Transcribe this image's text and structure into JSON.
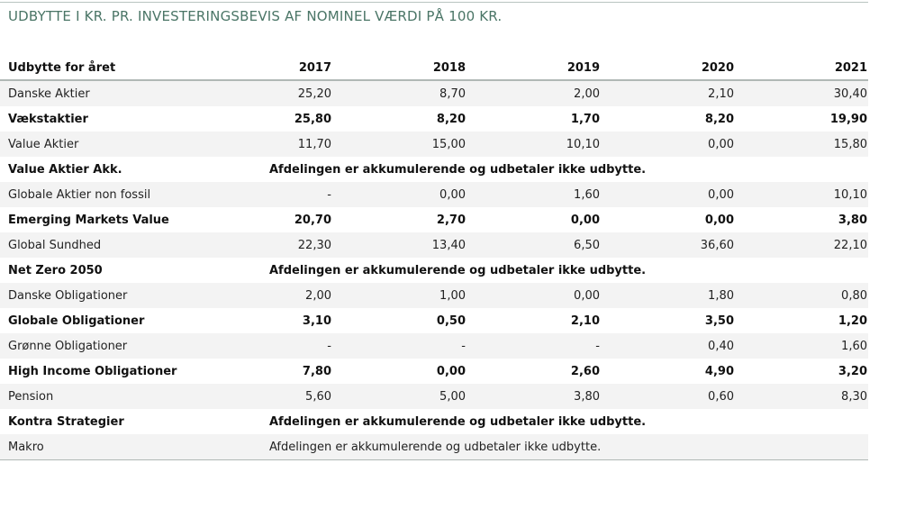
{
  "title": "UDBYTTE I KR. PR. INVESTERINGSBEVIS AF NOMINEL VÆRDI PÅ 100 KR.",
  "table": {
    "header": [
      "Udbytte for året",
      "2017",
      "2018",
      "2019",
      "2020",
      "2021"
    ],
    "rows": [
      [
        "Danske Aktier",
        "25,20",
        "8,70",
        "2,00",
        "2,10",
        "30,40"
      ],
      [
        "Vækstaktier",
        "25,80",
        "8,20",
        "1,70",
        "8,20",
        "19,90"
      ],
      [
        "Value Aktier",
        "11,70",
        "15,00",
        "10,10",
        "0,00",
        "15,80"
      ],
      [
        "Value Aktier Akk.",
        "Afdelingen er akkumulerende og udbetaler ikke udbytte."
      ],
      [
        "Globale Aktier non fossil",
        "-",
        "0,00",
        "1,60",
        "0,00",
        "10,10"
      ],
      [
        "Emerging Markets Value",
        "20,70",
        "2,70",
        "0,00",
        "0,00",
        "3,80"
      ],
      [
        "Global Sundhed",
        "22,30",
        "13,40",
        "6,50",
        "36,60",
        "22,10"
      ],
      [
        "Net Zero 2050",
        "Afdelingen er akkumulerende og udbetaler ikke udbytte."
      ],
      [
        "Danske Obligationer",
        "2,00",
        "1,00",
        "0,00",
        "1,80",
        "0,80"
      ],
      [
        "Globale Obligationer",
        "3,10",
        "0,50",
        "2,10",
        "3,50",
        "1,20"
      ],
      [
        "Grønne Obligationer",
        "-",
        "-",
        "-",
        "0,40",
        "1,60"
      ],
      [
        "High Income Obligationer",
        "7,80",
        "0,00",
        "2,60",
        "4,90",
        "3,20"
      ],
      [
        "Pension",
        "5,60",
        "5,00",
        "3,80",
        "0,60",
        "8,30"
      ],
      [
        "Kontra Strategier",
        "Afdelingen er akkumulerende og udbetaler ikke udbytte."
      ],
      [
        "Makro",
        "Afdelingen er akkumulerende og udbetaler ikke udbytte."
      ]
    ]
  }
}
